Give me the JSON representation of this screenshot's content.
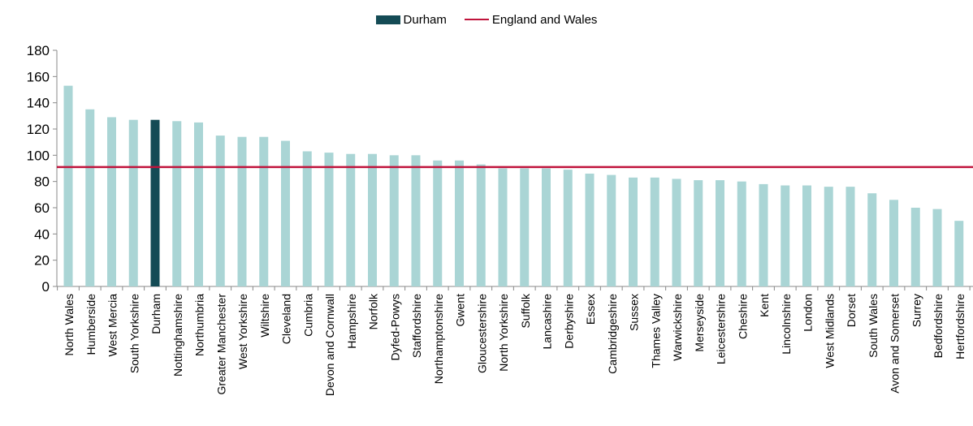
{
  "chart_data": {
    "type": "bar",
    "title": "",
    "xlabel": "",
    "ylabel": "",
    "ylim": [
      0,
      180
    ],
    "yticks": [
      0,
      20,
      40,
      60,
      80,
      100,
      120,
      140,
      160,
      180
    ],
    "grid": false,
    "legend_position": "top-center",
    "categories": [
      "North Wales",
      "Humberside",
      "West Mercia",
      "South Yorkshire",
      "Durham",
      "Nottinghamshire",
      "Northumbria",
      "Greater Manchester",
      "West Yorkshire",
      "Wiltshire",
      "Cleveland",
      "Cumbria",
      "Devon and Cornwall",
      "Hampshire",
      "Norfolk",
      "Dyfed-Powys",
      "Staffordshire",
      "Northamptonshire",
      "Gwent",
      "Gloucestershire",
      "North Yorkshire",
      "Suffolk",
      "Lancashire",
      "Derbyshire",
      "Essex",
      "Cambridgeshire",
      "Sussex",
      "Thames Valley",
      "Warwickshire",
      "Merseyside",
      "Leicestershire",
      "Cheshire",
      "Kent",
      "Lincolnshire",
      "London",
      "West Midlands",
      "Dorset",
      "South Wales",
      "Avon and Somerset",
      "Surrey",
      "Bedfordshire",
      "Hertfordshire"
    ],
    "series": [
      {
        "name": "Durham",
        "kind": "bar",
        "values": [
          153,
          135,
          129,
          127,
          127,
          126,
          125,
          115,
          114,
          114,
          111,
          103,
          102,
          101,
          101,
          100,
          100,
          96,
          96,
          93,
          90,
          90,
          90,
          89,
          86,
          85,
          83,
          83,
          82,
          81,
          81,
          80,
          78,
          77,
          77,
          76,
          76,
          71,
          66,
          60,
          59,
          50
        ],
        "highlight_category": "Durham",
        "color": "#144b55",
        "default_color": "#aad5d5"
      },
      {
        "name": "England and Wales",
        "kind": "line",
        "value": 91,
        "color": "#c0143c"
      }
    ]
  }
}
